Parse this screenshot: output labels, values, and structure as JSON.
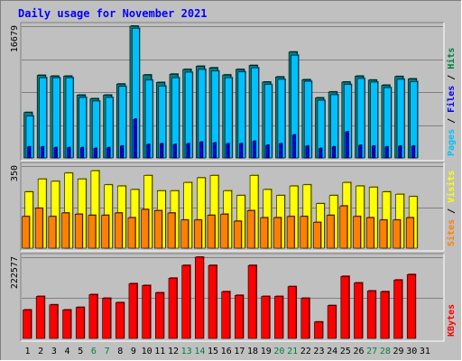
{
  "chart_data": {
    "type": "bar",
    "title": "Daily usage for November 2021",
    "categories": [
      "1",
      "2",
      "3",
      "4",
      "5",
      "6",
      "7",
      "8",
      "9",
      "10",
      "11",
      "12",
      "13",
      "14",
      "15",
      "16",
      "17",
      "18",
      "19",
      "20",
      "21",
      "22",
      "23",
      "24",
      "25",
      "26",
      "27",
      "28",
      "29",
      "30",
      "31"
    ],
    "weekend_days": [
      "6",
      "7",
      "13",
      "14",
      "20",
      "21",
      "27",
      "28"
    ],
    "panels": [
      {
        "id": "hits",
        "ylabel_parts": [
          "Pages",
          "Files",
          "Hits"
        ],
        "ylabel_colors": [
          "#00c0ff",
          "#0000ff",
          "#008040"
        ],
        "y_tick_label": "16679",
        "ylim": [
          0,
          16679
        ],
        "series": [
          {
            "name": "Hits",
            "color": "#008080",
            "values": [
              5750,
              10450,
              10350,
              10350,
              7950,
              7500,
              7950,
              9350,
              16679,
              10500,
              9550,
              10600,
              11200,
              11600,
              11400,
              10500,
              11200,
              11700,
              9600,
              10250,
              13400,
              9900,
              7600,
              8350,
              9600,
              10350,
              9850,
              9200,
              10300,
              10000
            ]
          },
          {
            "name": "Files",
            "color": "#00c0ff",
            "values": [
              5300,
              10150,
              10150,
              10150,
              7650,
              7200,
              7650,
              9050,
              16400,
              9850,
              9100,
              10150,
              10850,
              11200,
              11000,
              10150,
              10900,
              11400,
              9300,
              9950,
              13000,
              9700,
              7300,
              8000,
              9300,
              10050,
              9600,
              8900,
              9950,
              9650
            ]
          },
          {
            "name": "Pages",
            "color": "#0000ff",
            "values": [
              1400,
              1400,
              1300,
              1300,
              1300,
              1200,
              1300,
              1500,
              4900,
              1700,
              1800,
              1700,
              1800,
              2000,
              1900,
              1800,
              1800,
              2100,
              1600,
              1800,
              2900,
              1500,
              1200,
              1400,
              3300,
              1600,
              1500,
              1400,
              1500,
              1500
            ]
          }
        ]
      },
      {
        "id": "visits",
        "ylabel_parts": [
          "Sites",
          "Visits"
        ],
        "ylabel_colors": [
          "#ff8000",
          "#ffff00"
        ],
        "y_tick_label": "350",
        "ylim": [
          0,
          350
        ],
        "series": [
          {
            "name": "Visits",
            "color": "#ffff00",
            "values": [
              240,
              295,
              285,
              320,
              295,
              330,
              270,
              265,
              250,
              310,
              245,
              245,
              280,
              300,
              310,
              245,
              225,
              310,
              250,
              225,
              265,
              270,
              190,
              225,
              280,
              265,
              260,
              240,
              230,
              220
            ]
          },
          {
            "name": "Sites",
            "color": "#ff8000",
            "values": [
              135,
              170,
              135,
              150,
              145,
              140,
              140,
              150,
              130,
              165,
              160,
              150,
              120,
              120,
              140,
              145,
              115,
              160,
              130,
              130,
              135,
              135,
              110,
              140,
              180,
              135,
              130,
              120,
              120,
              130
            ]
          }
        ]
      },
      {
        "id": "kbytes",
        "ylabel_parts": [
          "KBytes"
        ],
        "ylabel_colors": [
          "#ff0000"
        ],
        "y_tick_label": "222577",
        "ylim": [
          0,
          222577
        ],
        "series": [
          {
            "name": "KBytes",
            "color": "#ff0000",
            "values": [
              78000,
              115000,
              92000,
              78000,
              85000,
              120000,
              110000,
              98000,
              150000,
              145000,
              125000,
              165000,
              200000,
              222577,
              200000,
              128000,
              118000,
              200000,
              115000,
              115000,
              142000,
              110000,
              45000,
              90000,
              170000,
              152000,
              130000,
              128000,
              160000,
              175000
            ]
          }
        ]
      }
    ]
  }
}
